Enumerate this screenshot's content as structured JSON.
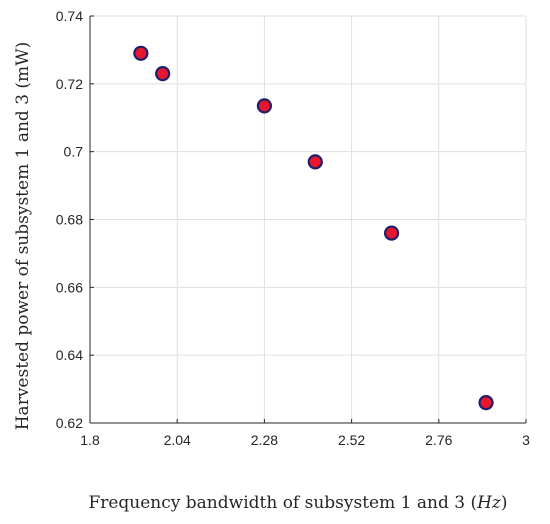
{
  "chart_data": {
    "type": "scatter",
    "xlabel": "Frequency bandwidth of subsystem 1 and 3",
    "xlabel_unit": "Hz",
    "ylabel": "Harvested power of subsystem 1 and 3 (mW)",
    "xlim": [
      1.8,
      3.0
    ],
    "ylim": [
      0.62,
      0.74
    ],
    "xticks": [
      "1.8",
      "2.04",
      "2.28",
      "2.52",
      "2.76",
      "3"
    ],
    "yticks": [
      "0.62",
      "0.64",
      "0.66",
      "0.68",
      "0.7",
      "0.72",
      "0.74"
    ],
    "grid": true,
    "marker_fill": "#e8152e",
    "marker_edge": "#1f1f6b",
    "series": [
      {
        "x": [
          1.94,
          2.0,
          2.28,
          2.42,
          2.63,
          2.89
        ],
        "y": [
          0.729,
          0.723,
          0.7135,
          0.697,
          0.676,
          0.626
        ]
      }
    ]
  }
}
